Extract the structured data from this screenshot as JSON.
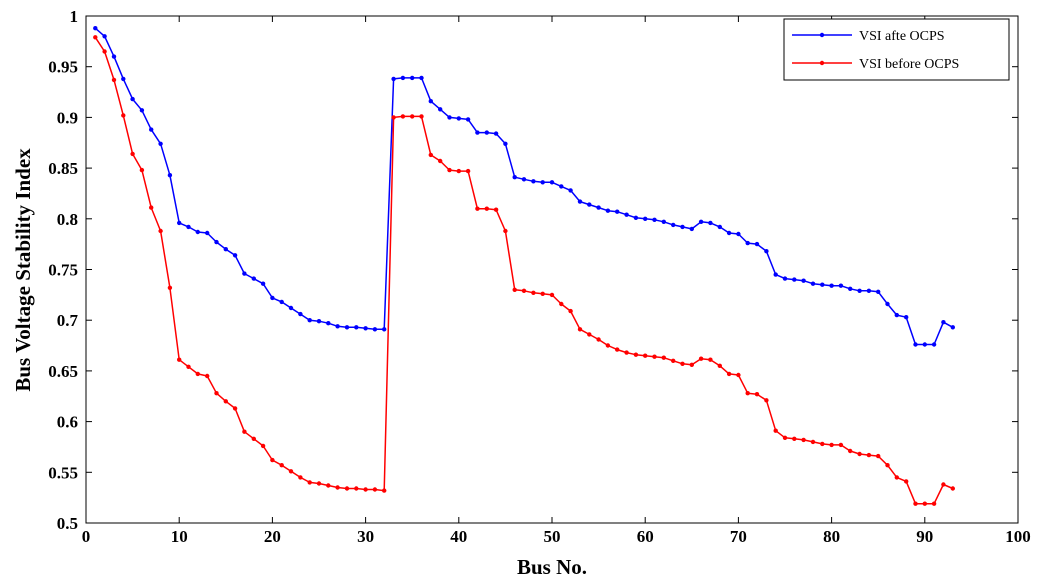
{
  "chart_data": {
    "type": "line",
    "title": "",
    "xlabel": "Bus No.",
    "ylabel": "Bus Voltage Stability Index",
    "xlim": [
      0,
      100
    ],
    "ylim": [
      0.5,
      1
    ],
    "x_ticks": [
      "0",
      "10",
      "20",
      "30",
      "40",
      "50",
      "60",
      "70",
      "80",
      "90",
      "100"
    ],
    "y_ticks": [
      "0.5",
      "0.55",
      "0.6",
      "0.65",
      "0.7",
      "0.75",
      "0.8",
      "0.85",
      "0.9",
      "0.95",
      "1"
    ],
    "grid": false,
    "legend_position": "top-right",
    "x": [
      1,
      2,
      3,
      4,
      5,
      6,
      7,
      8,
      9,
      10,
      11,
      12,
      13,
      14,
      15,
      16,
      17,
      18,
      19,
      20,
      21,
      22,
      23,
      24,
      25,
      26,
      27,
      28,
      29,
      30,
      31,
      32,
      33,
      34,
      35,
      36,
      37,
      38,
      39,
      40,
      41,
      42,
      43,
      44,
      45,
      46,
      47,
      48,
      49,
      50,
      51,
      52,
      53,
      54,
      55,
      56,
      57,
      58,
      59,
      60,
      61,
      62,
      63,
      64,
      65,
      66,
      67,
      68,
      69,
      70,
      71,
      72,
      73,
      74,
      75,
      76,
      77,
      78,
      79,
      80,
      81,
      82,
      83,
      84,
      85,
      86,
      87,
      88,
      89,
      90,
      91,
      92,
      93
    ],
    "series": [
      {
        "name": "VSI afte OCPS",
        "color": "#0000ff",
        "values": [
          0.988,
          0.98,
          0.96,
          0.938,
          0.918,
          0.907,
          0.888,
          0.874,
          0.843,
          0.796,
          0.792,
          0.787,
          0.786,
          0.777,
          0.77,
          0.764,
          0.746,
          0.741,
          0.736,
          0.722,
          0.718,
          0.712,
          0.706,
          0.7,
          0.699,
          0.697,
          0.694,
          0.693,
          0.693,
          0.692,
          0.691,
          0.691,
          0.938,
          0.939,
          0.939,
          0.939,
          0.916,
          0.908,
          0.9,
          0.899,
          0.898,
          0.885,
          0.885,
          0.884,
          0.874,
          0.841,
          0.839,
          0.837,
          0.836,
          0.836,
          0.832,
          0.828,
          0.817,
          0.814,
          0.811,
          0.808,
          0.807,
          0.804,
          0.801,
          0.8,
          0.799,
          0.797,
          0.794,
          0.792,
          0.79,
          0.797,
          0.796,
          0.792,
          0.786,
          0.785,
          0.776,
          0.775,
          0.768,
          0.745,
          0.741,
          0.74,
          0.739,
          0.736,
          0.735,
          0.734,
          0.734,
          0.731,
          0.729,
          0.729,
          0.728,
          0.716,
          0.705,
          0.703,
          0.676,
          0.676,
          0.676,
          0.698,
          0.693
        ]
      },
      {
        "name": "VSI before OCPS",
        "color": "#ff0000",
        "values": [
          0.979,
          0.965,
          0.937,
          0.902,
          0.864,
          0.848,
          0.811,
          0.788,
          0.732,
          0.661,
          0.654,
          0.647,
          0.645,
          0.628,
          0.62,
          0.613,
          0.59,
          0.583,
          0.576,
          0.562,
          0.557,
          0.551,
          0.545,
          0.54,
          0.539,
          0.537,
          0.535,
          0.534,
          0.534,
          0.533,
          0.533,
          0.532,
          0.9,
          0.901,
          0.901,
          0.901,
          0.863,
          0.857,
          0.848,
          0.847,
          0.847,
          0.81,
          0.81,
          0.809,
          0.788,
          0.73,
          0.729,
          0.727,
          0.726,
          0.725,
          0.716,
          0.709,
          0.691,
          0.686,
          0.681,
          0.675,
          0.671,
          0.668,
          0.666,
          0.665,
          0.664,
          0.663,
          0.66,
          0.657,
          0.656,
          0.662,
          0.661,
          0.655,
          0.647,
          0.646,
          0.628,
          0.627,
          0.621,
          0.591,
          0.584,
          0.583,
          0.582,
          0.58,
          0.578,
          0.577,
          0.577,
          0.571,
          0.568,
          0.567,
          0.566,
          0.557,
          0.545,
          0.541,
          0.519,
          0.519,
          0.519,
          0.538,
          0.534
        ]
      }
    ]
  }
}
